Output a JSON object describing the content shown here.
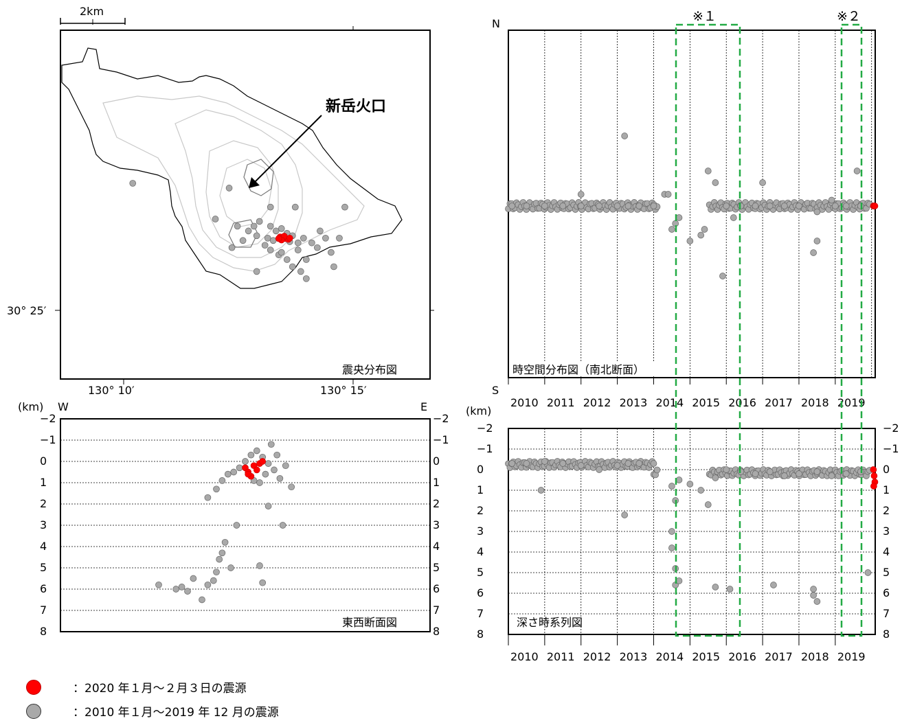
{
  "colors": {
    "recent": "#ff0000",
    "past": "#a9a9a9",
    "box": "#22aa44",
    "contour": "#c8c8c8"
  },
  "map": {
    "scalebar": "2km",
    "lat_label": "30° 25′",
    "lon_labels": [
      "130° 10′",
      "130° 15′"
    ],
    "crater_label": "新岳火口",
    "panel_label": "震央分布図"
  },
  "ew": {
    "unit": "(km)",
    "west": "W",
    "east": "E",
    "depth_ticks": [
      "−2",
      "−1",
      "0",
      "1",
      "2",
      "3",
      "4",
      "5",
      "6",
      "7",
      "8"
    ],
    "panel_label": "東西断面図"
  },
  "ns": {
    "north": "N",
    "south": "S",
    "years": [
      "2010",
      "2011",
      "2012",
      "2013",
      "2014",
      "2015",
      "2016",
      "2017",
      "2018",
      "2019"
    ],
    "panel_label": "時空間分布図（南北断面）",
    "box1": "※１",
    "box2": "※２"
  },
  "dt": {
    "unit": "(km)",
    "depth_ticks": [
      "−2",
      "−1",
      "0",
      "1",
      "2",
      "3",
      "4",
      "5",
      "6",
      "7",
      "8"
    ],
    "years": [
      "2010",
      "2011",
      "2012",
      "2013",
      "2014",
      "2015",
      "2016",
      "2017",
      "2018",
      "2019"
    ],
    "panel_label": "深さ時系列図"
  },
  "legend": {
    "recent": "：2020 年１月～２月３日の震源",
    "past": "：2010 年１月～2019 年 12 月の震源"
  },
  "chart_data": [
    {
      "type": "scatter",
      "title": "震央分布図",
      "xlabel": "",
      "ylabel": "",
      "note": "epicenters clustered around 新岳火口; red = recent, grey = past",
      "series": [
        {
          "name": "：2020 年１月～２月３日の震源",
          "points": [
            [
              130.2235,
              30.4475
            ],
            [
              130.2245,
              30.4472
            ],
            [
              130.2255,
              30.4468
            ],
            [
              130.2265,
              30.4465
            ],
            [
              130.225,
              30.4478
            ],
            [
              130.224,
              30.4462
            ],
            [
              130.227,
              30.447
            ],
            [
              130.223,
              30.4468
            ]
          ]
        },
        {
          "name": "：2010 年１月～2019 年 12 月の震源",
          "points": [
            [
              130.17,
              30.47
            ],
            [
              130.205,
              30.468
            ],
            [
              130.2,
              30.455
            ],
            [
              130.208,
              30.452
            ],
            [
              130.212,
              30.45
            ],
            [
              130.206,
              30.443
            ],
            [
              130.215,
              30.448
            ],
            [
              130.218,
              30.444
            ],
            [
              130.22,
              30.452
            ],
            [
              130.222,
              30.45
            ],
            [
              130.224,
              30.451
            ],
            [
              130.226,
              30.449
            ],
            [
              130.228,
              30.448
            ],
            [
              130.23,
              30.445
            ],
            [
              130.232,
              30.447
            ],
            [
              130.22,
              30.442
            ],
            [
              130.223,
              30.44
            ],
            [
              130.226,
              30.438
            ],
            [
              130.228,
              30.435
            ],
            [
              130.233,
              30.438
            ],
            [
              130.23,
              30.442
            ],
            [
              130.235,
              30.445
            ],
            [
              130.237,
              30.443
            ],
            [
              130.219,
              30.447
            ],
            [
              130.221,
              30.446
            ],
            [
              130.227,
              30.4455
            ],
            [
              130.214,
              30.452
            ],
            [
              130.21,
              30.446
            ],
            [
              130.24,
              30.447
            ],
            [
              130.238,
              30.45
            ],
            [
              130.216,
              30.454
            ],
            [
              130.229,
              30.46
            ],
            [
              130.242,
              30.441
            ],
            [
              130.245,
              30.447
            ],
            [
              130.247,
              30.46
            ],
            [
              130.22,
              30.46
            ],
            [
              130.224,
              30.441
            ],
            [
              130.231,
              30.433
            ],
            [
              130.233,
              30.43
            ],
            [
              130.215,
              30.433
            ],
            [
              130.243,
              30.435
            ]
          ]
        }
      ]
    },
    {
      "type": "scatter",
      "title": "東西断面図",
      "xlabel": "",
      "ylabel": "(km)",
      "ylim": [
        -2,
        8
      ],
      "series": [
        {
          "name": "：2020 年１月～２月３日の震源",
          "points": [
            [
              0.0,
              0.3
            ],
            [
              0.1,
              0.5
            ],
            [
              0.2,
              0.7
            ],
            [
              0.3,
              0.2
            ],
            [
              0.4,
              0.4
            ],
            [
              0.5,
              0.1
            ],
            [
              0.1,
              0.6
            ],
            [
              0.6,
              0.0
            ]
          ]
        },
        {
          "name": "：2010 年１月～2019 年 12 月の震源",
          "points": [
            [
              -3.0,
              5.8
            ],
            [
              -2.4,
              6.0
            ],
            [
              -2.2,
              5.9
            ],
            [
              -2.0,
              6.1
            ],
            [
              -1.8,
              5.5
            ],
            [
              -1.5,
              6.5
            ],
            [
              -1.3,
              5.8
            ],
            [
              -1.1,
              5.6
            ],
            [
              -1.0,
              5.2
            ],
            [
              -0.9,
              4.6
            ],
            [
              -0.8,
              4.3
            ],
            [
              -0.7,
              3.8
            ],
            [
              -0.5,
              5.0
            ],
            [
              -0.3,
              3.0
            ],
            [
              0.5,
              4.9
            ],
            [
              0.6,
              5.7
            ],
            [
              -1.3,
              1.7
            ],
            [
              -1.0,
              1.3
            ],
            [
              -0.8,
              0.9
            ],
            [
              -0.6,
              0.6
            ],
            [
              -0.4,
              0.5
            ],
            [
              -0.2,
              0.3
            ],
            [
              0.0,
              0.0
            ],
            [
              0.2,
              -0.3
            ],
            [
              0.4,
              -0.5
            ],
            [
              0.6,
              -0.2
            ],
            [
              0.8,
              0.1
            ],
            [
              1.0,
              0.4
            ],
            [
              1.2,
              0.8
            ],
            [
              1.4,
              0.2
            ],
            [
              1.6,
              1.2
            ],
            [
              0.8,
              2.1
            ],
            [
              1.3,
              3.0
            ],
            [
              0.9,
              -0.8
            ],
            [
              0.7,
              0.6
            ],
            [
              1.1,
              -0.3
            ],
            [
              0.3,
              0.9
            ],
            [
              0.5,
              1.0
            ]
          ]
        }
      ]
    },
    {
      "type": "scatter",
      "title": "時空間分布図（南北断面）",
      "xlabel": "",
      "ylabel": "",
      "x_range": [
        2010,
        2020.1
      ],
      "note": "N-S position vs time; most events on a narrow band near the crater",
      "series": [
        {
          "name": "：2020 年１月～２月３日の震源",
          "x": [
            2020.05,
            2020.07,
            2020.09
          ],
          "y": [
            0.0,
            0.0,
            0.0
          ]
        },
        {
          "name": "：2010 年１月～2019 年 12 月の震源",
          "x": [
            2010.1,
            2010.5,
            2011.0,
            2011.5,
            2012.0,
            2012.5,
            2013.0,
            2013.3,
            2013.6,
            2014.0,
            2014.3,
            2014.5,
            2014.7,
            2015.0,
            2015.3,
            2015.7,
            2016.0,
            2016.4,
            2016.8,
            2017.2,
            2017.6,
            2018.0,
            2018.5,
            2018.9,
            2019.3,
            2019.7,
            2013.2,
            2014.4,
            2015.5,
            2015.9,
            2018.4,
            2018.5,
            2019.6,
            2012.0,
            2014.6,
            2015.4,
            2016.2,
            2017.0,
            2019.0
          ],
          "y": [
            0.0,
            0.0,
            0.0,
            0.0,
            0.0,
            0.0,
            0.0,
            0.0,
            0.0,
            0.0,
            -0.1,
            0.2,
            0.1,
            0.3,
            0.25,
            -0.2,
            0.0,
            0.0,
            0.0,
            0.0,
            0.0,
            0.0,
            0.05,
            -0.05,
            0.0,
            0.0,
            -0.6,
            -0.1,
            -0.3,
            0.6,
            0.4,
            0.3,
            -0.3,
            -0.1,
            0.15,
            0.2,
            0.1,
            -0.2,
            0.0
          ]
        }
      ]
    },
    {
      "type": "scatter",
      "title": "深さ時系列図",
      "xlabel": "",
      "ylabel": "(km)",
      "ylim": [
        -2,
        8
      ],
      "x_range": [
        2010,
        2020.1
      ],
      "series": [
        {
          "name": "：2020 年１月～２月３日の震源",
          "x": [
            2020.05,
            2020.07,
            2020.09,
            2020.06
          ],
          "y": [
            0.0,
            0.3,
            0.6,
            0.8
          ]
        },
        {
          "name": "：2010 年１月～2019 年 12 月の震源",
          "x": [
            2010.1,
            2010.5,
            2011.0,
            2011.5,
            2012.0,
            2012.5,
            2013.0,
            2013.3,
            2013.6,
            2014.0,
            2014.5,
            2014.6,
            2014.7,
            2015.0,
            2015.3,
            2015.5,
            2015.7,
            2016.0,
            2016.4,
            2016.8,
            2017.2,
            2017.6,
            2018.0,
            2018.5,
            2018.9,
            2019.3,
            2019.7,
            2010.9,
            2013.2,
            2014.5,
            2014.5,
            2014.6,
            2014.6,
            2014.7,
            2015.7,
            2016.1,
            2017.3,
            2018.4,
            2018.4,
            2018.5,
            2019.9
          ],
          "y": [
            -0.3,
            -0.3,
            -0.4,
            -0.3,
            -0.2,
            0.0,
            -0.2,
            -0.3,
            -0.3,
            -0.3,
            0.8,
            1.5,
            0.5,
            0.7,
            1.0,
            1.7,
            0.4,
            0.0,
            0.1,
            0.2,
            0.1,
            0.3,
            0.2,
            0.1,
            0.3,
            0.2,
            0.1,
            1.0,
            2.2,
            3.0,
            3.8,
            4.8,
            5.6,
            5.4,
            5.7,
            5.8,
            5.6,
            5.8,
            6.1,
            6.4,
            5.0
          ]
        }
      ]
    }
  ]
}
